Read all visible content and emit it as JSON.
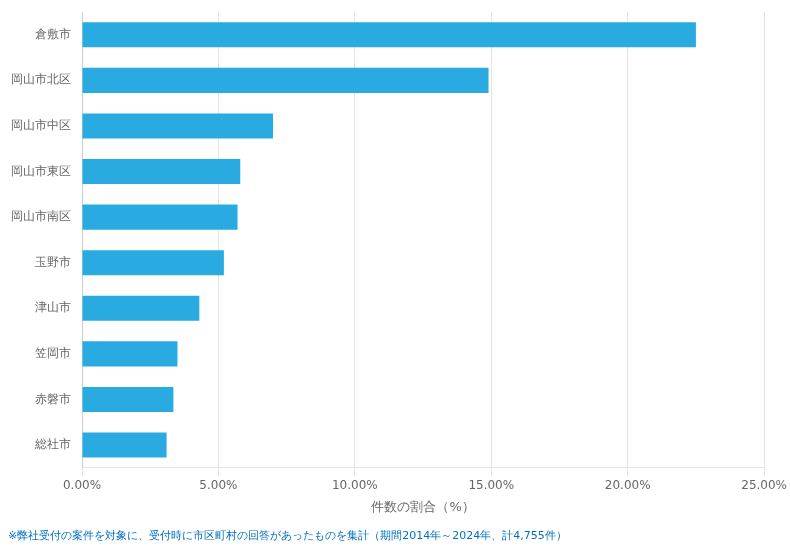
{
  "chart_data": {
    "type": "bar",
    "orientation": "horizontal",
    "categories": [
      "倉敷市",
      "岡山市北区",
      "岡山市中区",
      "岡山市東区",
      "岡山市南区",
      "玉野市",
      "津山市",
      "笠岡市",
      "赤磐市",
      "総社市"
    ],
    "values": [
      22.5,
      14.9,
      7.0,
      5.8,
      5.7,
      5.2,
      4.3,
      3.5,
      3.35,
      3.1
    ],
    "color": "#29ABE2",
    "xlabel": "件数の割合（%）",
    "xlim": [
      0,
      25
    ],
    "xticks": [
      {
        "value": 0,
        "label": "0.00%"
      },
      {
        "value": 5,
        "label": "5.00%"
      },
      {
        "value": 10,
        "label": "10.00%"
      },
      {
        "value": 15,
        "label": "15.00%"
      },
      {
        "value": 20,
        "label": "20.00%"
      },
      {
        "value": 25,
        "label": "25.00%"
      }
    ],
    "grid": true,
    "annotations": [
      "※弊社受付の案件を対象に、受付時に市区町村の回答があったものを集計（期間2014年～2024年、計4,755件）"
    ]
  }
}
